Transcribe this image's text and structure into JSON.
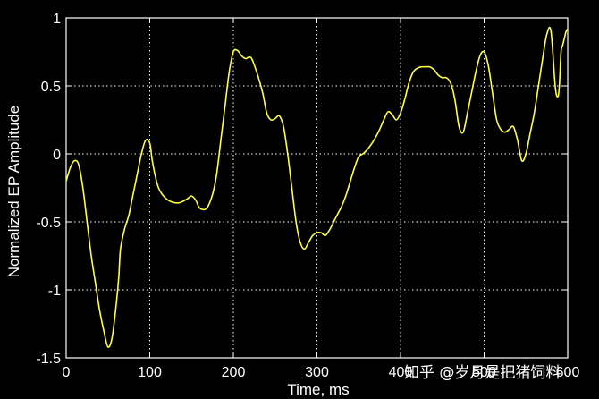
{
  "chart_data": {
    "type": "line",
    "xlabel": "Time, ms",
    "ylabel": "Normalized EP Amplitude",
    "xlim": [
      0,
      600
    ],
    "ylim": [
      -1.5,
      1
    ],
    "grid": true,
    "x_ticks": [
      0,
      100,
      200,
      300,
      400,
      500,
      600
    ],
    "x_tick_labels": [
      "0",
      "100",
      "200",
      "300",
      "400",
      "500",
      "600"
    ],
    "y_ticks": [
      -1.5,
      -1,
      -0.5,
      0,
      0.5,
      1
    ],
    "y_tick_labels": [
      "-1.5",
      "-1",
      "-0.5",
      "0",
      "0.5",
      "1"
    ],
    "line_color": "#ffff40",
    "background": "#000000",
    "series": [
      {
        "x": [
          0,
          5,
          10,
          15,
          20,
          25,
          30,
          35,
          40,
          45,
          50,
          55,
          60,
          63,
          65,
          70,
          75,
          80,
          85,
          90,
          95,
          100,
          103,
          108,
          112,
          118,
          125,
          135,
          145,
          150,
          155,
          160,
          168,
          175,
          180,
          185,
          190,
          195,
          200,
          205,
          210,
          215,
          218,
          222,
          228,
          235,
          240,
          245,
          250,
          255,
          260,
          265,
          270,
          275,
          280,
          285,
          290,
          295,
          300,
          305,
          310,
          315,
          320,
          325,
          330,
          335,
          340,
          345,
          350,
          355,
          360,
          365,
          370,
          375,
          380,
          385,
          390,
          395,
          400,
          405,
          410,
          415,
          420,
          425,
          430,
          435,
          440,
          445,
          450,
          455,
          460,
          465,
          470,
          475,
          480,
          485,
          490,
          495,
          500,
          505,
          510,
          515,
          520,
          525,
          530,
          535,
          540,
          545,
          550,
          555,
          560,
          565,
          570,
          575,
          580,
          585,
          588,
          590,
          592,
          594,
          596,
          598,
          600
        ],
        "y": [
          -0.2,
          -0.1,
          -0.05,
          -0.08,
          -0.25,
          -0.5,
          -0.75,
          -0.95,
          -1.15,
          -1.3,
          -1.42,
          -1.35,
          -1.1,
          -0.9,
          -0.7,
          -0.55,
          -0.45,
          -0.3,
          -0.15,
          0.0,
          0.1,
          0.08,
          -0.05,
          -0.2,
          -0.27,
          -0.32,
          -0.35,
          -0.36,
          -0.33,
          -0.31,
          -0.34,
          -0.4,
          -0.4,
          -0.3,
          -0.15,
          0.1,
          0.35,
          0.6,
          0.75,
          0.76,
          0.72,
          0.7,
          0.71,
          0.7,
          0.6,
          0.45,
          0.3,
          0.25,
          0.26,
          0.28,
          0.2,
          0.0,
          -0.25,
          -0.5,
          -0.65,
          -0.7,
          -0.65,
          -0.6,
          -0.58,
          -0.58,
          -0.6,
          -0.56,
          -0.5,
          -0.44,
          -0.38,
          -0.3,
          -0.2,
          -0.1,
          -0.02,
          0.0,
          0.03,
          0.07,
          0.12,
          0.18,
          0.25,
          0.31,
          0.29,
          0.25,
          0.3,
          0.4,
          0.52,
          0.6,
          0.63,
          0.64,
          0.64,
          0.64,
          0.62,
          0.58,
          0.56,
          0.56,
          0.52,
          0.4,
          0.2,
          0.16,
          0.3,
          0.45,
          0.6,
          0.72,
          0.75,
          0.65,
          0.45,
          0.25,
          0.18,
          0.16,
          0.18,
          0.2,
          0.1,
          -0.05,
          0.0,
          0.15,
          0.3,
          0.5,
          0.7,
          0.88,
          0.9,
          0.5,
          0.42,
          0.5,
          0.75,
          0.8,
          0.85,
          0.9,
          0.92
        ]
      }
    ]
  },
  "watermark": "知乎 @岁月是把猪饲料"
}
